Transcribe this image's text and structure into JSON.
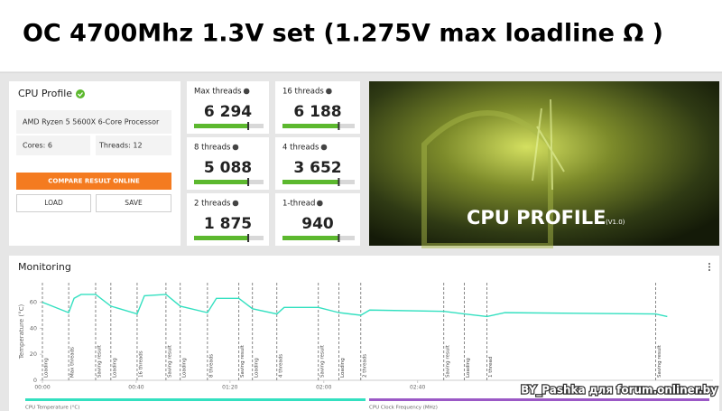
{
  "header": {
    "title": "OC 4700Mhz 1.3V set (1.275V max loadline Ω )"
  },
  "profile": {
    "title": "CPU Profile",
    "processor": "AMD Ryzen 5 5600X 6-Core Processor",
    "cores": "Cores: 6",
    "threads": "Threads: 12",
    "compare": "COMPARE RESULT ONLINE",
    "load": "LOAD",
    "save": "SAVE"
  },
  "scores": [
    {
      "label": "Max threads",
      "value": "6 294"
    },
    {
      "label": "16 threads",
      "value": "6 188"
    },
    {
      "label": "8 threads",
      "value": "5 088"
    },
    {
      "label": "4 threads",
      "value": "3 652"
    },
    {
      "label": "2 threads",
      "value": "1 875"
    },
    {
      "label": "1-thread",
      "value": "940"
    }
  ],
  "banner": {
    "title": "CPU PROFILE",
    "version": "(V1.0)"
  },
  "watermark": "BY_Pashka для forum.onliner.by",
  "chart_data": {
    "type": "line",
    "title": "Monitoring",
    "y_label": "Temperature (°C)",
    "x": [
      0,
      11.2,
      13.5,
      16.5,
      22.7,
      29.2,
      40.4,
      43.5,
      52.7,
      58.8,
      70.4,
      74.2,
      83.8,
      89.6,
      100,
      103.1,
      117.7,
      126.5,
      135.8,
      139.6,
      171.2,
      180,
      189.6,
      197.3,
      261.5,
      266.5
    ],
    "series": [
      {
        "name": "CPU Temperature (°C)",
        "color": "#33e0c0",
        "values": [
          60,
          52,
          63,
          66,
          66,
          57,
          51,
          65,
          66,
          57,
          52,
          63,
          63,
          55,
          51,
          56,
          56,
          52,
          50,
          54,
          53,
          51,
          49,
          52,
          51,
          49
        ]
      },
      {
        "name": "CPU Clock Frequency (MHz)",
        "color": "#9b59c6",
        "values": [
          null,
          null,
          null,
          null,
          null,
          null,
          null,
          null,
          null,
          null,
          null,
          null,
          null,
          null,
          null,
          null,
          null,
          null,
          null,
          null,
          null,
          null,
          null,
          null,
          null,
          null
        ]
      }
    ],
    "events": [
      {
        "x": 0,
        "label": "Loading"
      },
      {
        "x": 11.2,
        "label": "Max threads"
      },
      {
        "x": 22.7,
        "label": "Saving result"
      },
      {
        "x": 29.2,
        "label": "Loading"
      },
      {
        "x": 40.4,
        "label": "16 threads"
      },
      {
        "x": 52.7,
        "label": "Saving result"
      },
      {
        "x": 58.8,
        "label": "Loading"
      },
      {
        "x": 70.4,
        "label": "8 threads"
      },
      {
        "x": 83.8,
        "label": "Saving result"
      },
      {
        "x": 89.6,
        "label": "Loading"
      },
      {
        "x": 100,
        "label": "4 threads"
      },
      {
        "x": 117.7,
        "label": "Saving result"
      },
      {
        "x": 126.5,
        "label": "Loading"
      },
      {
        "x": 135.8,
        "label": "2 threads"
      },
      {
        "x": 171.2,
        "label": "Saving result"
      },
      {
        "x": 180,
        "label": "Loading"
      },
      {
        "x": 189.6,
        "label": "1 thread"
      },
      {
        "x": 261.5,
        "label": "Saving result"
      }
    ],
    "xlim": [
      0,
      286
    ],
    "ylim": [
      0,
      75
    ],
    "xticks": [
      {
        "value": 0,
        "label": "00:00"
      },
      {
        "value": 40,
        "label": "00:40"
      },
      {
        "value": 80,
        "label": "01:20"
      },
      {
        "value": 120,
        "label": "02:00"
      },
      {
        "value": 160,
        "label": "02:40"
      }
    ],
    "yticks": [
      0,
      20,
      40,
      60
    ]
  }
}
